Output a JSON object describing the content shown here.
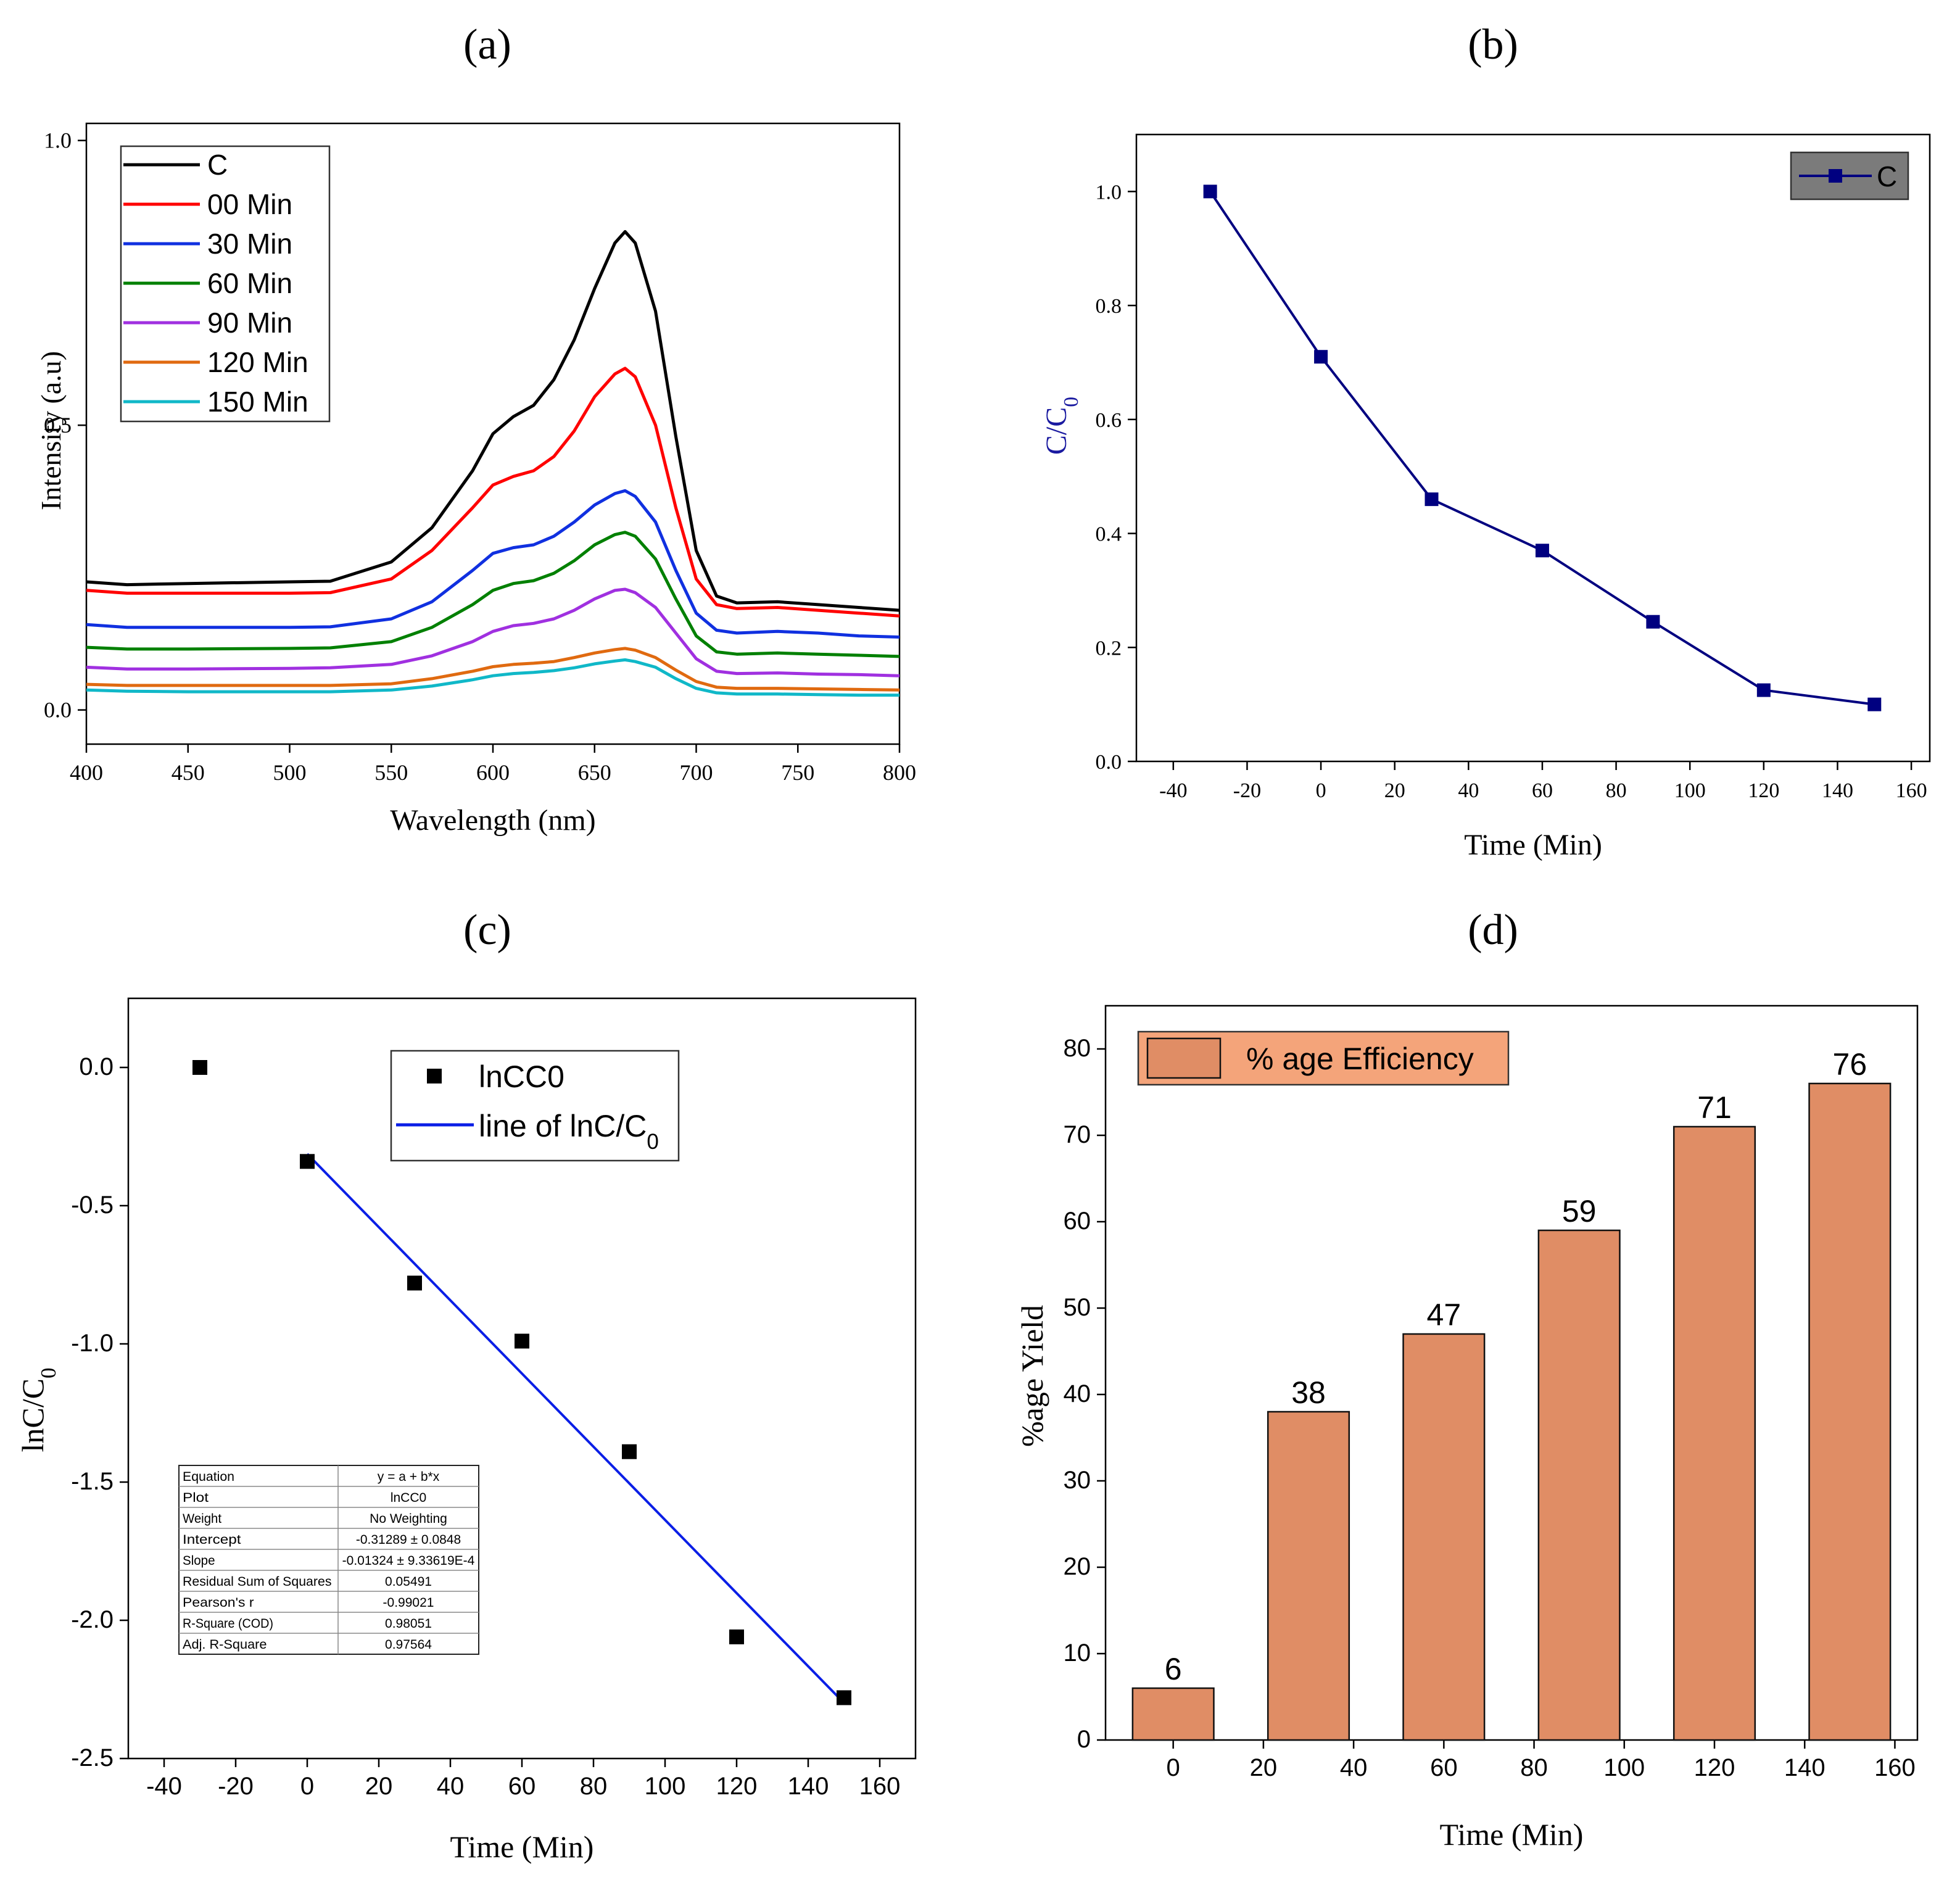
{
  "chart_data": [
    {
      "panel": "(a)",
      "type": "line",
      "xlabel": "Wavelength (nm)",
      "ylabel": "Intensity (a.u)",
      "xlim": [
        400,
        800
      ],
      "ylim": [
        -0.06,
        1.03
      ],
      "xticks": [
        400,
        450,
        500,
        550,
        600,
        650,
        700,
        750,
        800
      ],
      "yticks": [
        0.0,
        0.5,
        1.0
      ],
      "ytick_labels": [
        "0.0",
        "0.5",
        "1.0"
      ],
      "legend_position": "top-left",
      "x": [
        400,
        420,
        450,
        500,
        520,
        550,
        570,
        590,
        600,
        610,
        620,
        630,
        640,
        650,
        660,
        665,
        670,
        680,
        690,
        700,
        710,
        720,
        740,
        760,
        780,
        800
      ],
      "series": [
        {
          "name": "C",
          "color": "#000000",
          "values": [
            0.225,
            0.22,
            0.222,
            0.225,
            0.226,
            0.26,
            0.32,
            0.42,
            0.485,
            0.515,
            0.535,
            0.58,
            0.65,
            0.74,
            0.82,
            0.84,
            0.82,
            0.7,
            0.48,
            0.28,
            0.2,
            0.188,
            0.19,
            0.185,
            0.18,
            0.175
          ]
        },
        {
          "name": "00 Min",
          "color": "#ff0000",
          "values": [
            0.21,
            0.205,
            0.205,
            0.205,
            0.206,
            0.23,
            0.28,
            0.355,
            0.395,
            0.41,
            0.42,
            0.445,
            0.49,
            0.55,
            0.59,
            0.6,
            0.585,
            0.5,
            0.355,
            0.23,
            0.185,
            0.178,
            0.18,
            0.175,
            0.17,
            0.165
          ]
        },
        {
          "name": "30 Min",
          "color": "#1030e0",
          "values": [
            0.15,
            0.145,
            0.145,
            0.145,
            0.146,
            0.16,
            0.19,
            0.245,
            0.275,
            0.285,
            0.29,
            0.305,
            0.33,
            0.36,
            0.38,
            0.385,
            0.375,
            0.33,
            0.245,
            0.17,
            0.14,
            0.135,
            0.138,
            0.135,
            0.13,
            0.128
          ]
        },
        {
          "name": "60 Min",
          "color": "#008000",
          "values": [
            0.11,
            0.107,
            0.107,
            0.108,
            0.109,
            0.12,
            0.145,
            0.185,
            0.21,
            0.222,
            0.227,
            0.24,
            0.262,
            0.29,
            0.308,
            0.312,
            0.305,
            0.265,
            0.195,
            0.13,
            0.102,
            0.098,
            0.1,
            0.098,
            0.096,
            0.094
          ]
        },
        {
          "name": "90 Min",
          "color": "#a030e0",
          "values": [
            0.075,
            0.072,
            0.072,
            0.073,
            0.074,
            0.08,
            0.095,
            0.12,
            0.138,
            0.148,
            0.152,
            0.16,
            0.175,
            0.195,
            0.21,
            0.212,
            0.206,
            0.18,
            0.135,
            0.09,
            0.068,
            0.064,
            0.065,
            0.063,
            0.062,
            0.06
          ]
        },
        {
          "name": "120 Min",
          "color": "#e06a10",
          "values": [
            0.045,
            0.043,
            0.043,
            0.043,
            0.043,
            0.046,
            0.055,
            0.068,
            0.076,
            0.08,
            0.082,
            0.085,
            0.092,
            0.1,
            0.106,
            0.108,
            0.105,
            0.092,
            0.07,
            0.05,
            0.04,
            0.038,
            0.038,
            0.037,
            0.036,
            0.035
          ]
        },
        {
          "name": "150 Min",
          "color": "#10b8c8",
          "values": [
            0.035,
            0.033,
            0.032,
            0.032,
            0.032,
            0.035,
            0.042,
            0.053,
            0.06,
            0.064,
            0.066,
            0.069,
            0.074,
            0.081,
            0.086,
            0.088,
            0.085,
            0.075,
            0.055,
            0.038,
            0.03,
            0.028,
            0.028,
            0.027,
            0.026,
            0.026
          ]
        }
      ]
    },
    {
      "panel": "(b)",
      "type": "line",
      "xlabel": "Time (Min)",
      "ylabel_main": "C/C",
      "ylabel_sub": "0",
      "xlim": [
        -50,
        165
      ],
      "ylim": [
        0.0,
        1.1
      ],
      "xticks": [
        -40,
        -20,
        0,
        20,
        40,
        60,
        80,
        100,
        120,
        140,
        160
      ],
      "yticks": [
        0.0,
        0.2,
        0.4,
        0.6,
        0.8,
        1.0
      ],
      "ytick_labels": [
        "0.0",
        "0.2",
        "0.4",
        "0.6",
        "0.8",
        "1.0"
      ],
      "legend_position": "top-right",
      "series": [
        {
          "name": "C",
          "color": "#000080",
          "x": [
            -30,
            0,
            30,
            60,
            90,
            120,
            150
          ],
          "values": [
            1.0,
            0.71,
            0.46,
            0.37,
            0.245,
            0.125,
            0.1
          ]
        }
      ]
    },
    {
      "panel": "(c)",
      "type": "scatter",
      "xlabel": "Time (Min)",
      "ylabel_main": "lnC/C",
      "ylabel_sub": "0",
      "xlim": [
        -50,
        170
      ],
      "ylim": [
        -2.5,
        0.25
      ],
      "xticks": [
        -40,
        -20,
        0,
        20,
        40,
        60,
        80,
        100,
        120,
        140,
        160
      ],
      "yticks": [
        0.0,
        -0.5,
        -1.0,
        -1.5,
        -2.0,
        -2.5
      ],
      "ytick_labels": [
        "0.0",
        "-0.5",
        "-1.0",
        "-1.5",
        "-2.0",
        "-2.5"
      ],
      "legend_position": "top-right",
      "series": [
        {
          "name": "lnCC0",
          "color": "#000000",
          "x": [
            -30,
            0,
            30,
            60,
            90,
            120,
            150
          ],
          "values": [
            0.0,
            -0.34,
            -0.78,
            -0.99,
            -1.39,
            -2.06,
            -2.28
          ]
        }
      ],
      "fit_line": {
        "name_main": "line of lnC/C",
        "name_sub": "0",
        "color": "#0a1ee6",
        "x": [
          0,
          150
        ],
        "values": [
          -0.31289,
          -2.29889
        ]
      },
      "fit_table": [
        [
          "Equation",
          "y = a + b*x"
        ],
        [
          "Plot",
          "lnCC0"
        ],
        [
          "Weight",
          "No Weighting"
        ],
        [
          "Intercept",
          "-0.31289 ± 0.0848"
        ],
        [
          "Slope",
          "-0.01324 ± 9.33619E-4"
        ],
        [
          "Residual Sum of Squares",
          "0.05491"
        ],
        [
          "Pearson's r",
          "-0.99021"
        ],
        [
          "R-Square (COD)",
          "0.98051"
        ],
        [
          "Adj. R-Square",
          "0.97564"
        ]
      ]
    },
    {
      "panel": "(d)",
      "type": "bar",
      "xlabel": "Time (Min)",
      "ylabel": "%age Yield",
      "xlim": [
        -15,
        165
      ],
      "ylim": [
        0,
        85
      ],
      "xticks": [
        0,
        20,
        40,
        60,
        80,
        100,
        120,
        140,
        160
      ],
      "yticks": [
        0,
        10,
        20,
        30,
        40,
        50,
        60,
        70,
        80
      ],
      "ytick_labels": [
        "0",
        "10",
        "20",
        "30",
        "40",
        "50",
        "60",
        "70",
        "80"
      ],
      "legend_position": "top-left",
      "bar_color": "#e08d65",
      "legend_color": "#f4a47a",
      "series": [
        {
          "name": "% age Efficiency",
          "x": [
            0,
            30,
            60,
            90,
            120,
            150
          ],
          "values": [
            6,
            38,
            47,
            59,
            71,
            76
          ],
          "labels": [
            "6",
            "38",
            "47",
            "59",
            "71",
            "76"
          ]
        }
      ]
    }
  ]
}
